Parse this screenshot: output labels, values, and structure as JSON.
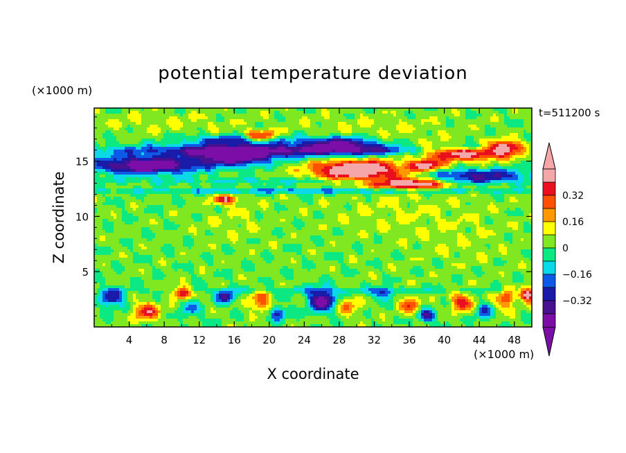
{
  "chart_data": {
    "type": "heatmap",
    "title": "potential temperature deviation",
    "time_label": "t=511200 s",
    "xlabel": "X coordinate",
    "ylabel": "Z coordinate",
    "x_unit": "(×1000 m)",
    "y_unit": "(×1000 m)",
    "xlim": [
      0,
      50
    ],
    "ylim": [
      0,
      19.8
    ],
    "x_ticks": [
      4,
      8,
      12,
      16,
      20,
      24,
      28,
      32,
      36,
      40,
      44,
      48
    ],
    "y_ticks": [
      5,
      10,
      15
    ],
    "grid": false,
    "colorbar": {
      "levels": [
        -0.48,
        -0.4,
        -0.32,
        -0.24,
        -0.16,
        -0.08,
        0,
        0.08,
        0.16,
        0.24,
        0.32,
        0.4,
        0.48
      ],
      "tick_values": [
        0.32,
        0.16,
        0,
        -0.16,
        -0.32
      ],
      "tick_labels": [
        "0.32",
        "0.16",
        "0",
        "−0.16",
        "−0.32"
      ],
      "colors": [
        "#7a0ea6",
        "#46108f",
        "#1a1aa8",
        "#0c5ae6",
        "#0bd9ea",
        "#0bea82",
        "#7fe820",
        "#ffff00",
        "#ff9800",
        "#ff5200",
        "#e8101e",
        "#f4a6a8"
      ],
      "under_color": "#7a0ea6",
      "over_color": "#f4a6a8"
    },
    "field": {
      "background_value": 0.02,
      "features": [
        {
          "x": 8,
          "z": 18.5,
          "sx": 9,
          "sz": 1.0,
          "v": 0.06
        },
        {
          "x": 32,
          "z": 18.0,
          "sx": 10,
          "sz": 1.2,
          "v": 0.06
        },
        {
          "x": 34,
          "z": 10.5,
          "sx": 8,
          "sz": 2.5,
          "v": 0.05
        },
        {
          "x": 16,
          "z": 9.5,
          "sx": 4,
          "sz": 2.0,
          "v": 0.05
        },
        {
          "x": 42,
          "z": 8.0,
          "sx": 6,
          "sz": 3.0,
          "v": 0.04
        },
        {
          "x": 25,
          "z": 16.0,
          "sx": 25,
          "sz": 0.45,
          "v": -0.24
        },
        {
          "x": 20,
          "z": 15.8,
          "sx": 18,
          "sz": 0.7,
          "v": -0.18
        },
        {
          "x": 6,
          "z": 14.6,
          "sx": 6,
          "sz": 0.75,
          "v": -0.55
        },
        {
          "x": 16,
          "z": 15.4,
          "sx": 4,
          "sz": 0.8,
          "v": -0.5
        },
        {
          "x": 28,
          "z": 16.6,
          "sx": 4,
          "sz": 0.6,
          "v": -0.42
        },
        {
          "x": 17,
          "z": 16.9,
          "sx": 6,
          "sz": 0.5,
          "v": -0.32
        },
        {
          "x": 43,
          "z": 16.3,
          "sx": 3,
          "sz": 0.4,
          "v": -0.28
        },
        {
          "x": 44,
          "z": 13.7,
          "sx": 6,
          "sz": 0.6,
          "v": -0.36
        },
        {
          "x": 25,
          "z": 12.3,
          "sx": 25,
          "sz": 0.25,
          "v": -0.2
        },
        {
          "x": 25,
          "z": 13.2,
          "sx": 25,
          "sz": 0.3,
          "v": -0.12
        },
        {
          "x": 30,
          "z": 14.2,
          "sx": 5,
          "sz": 0.9,
          "v": 0.6
        },
        {
          "x": 36,
          "z": 13.0,
          "sx": 4,
          "sz": 0.5,
          "v": 0.55
        },
        {
          "x": 42,
          "z": 15.8,
          "sx": 5,
          "sz": 0.7,
          "v": 0.6
        },
        {
          "x": 47,
          "z": 16.2,
          "sx": 2,
          "sz": 0.6,
          "v": 0.5
        },
        {
          "x": 19,
          "z": 17.2,
          "sx": 2,
          "sz": 0.5,
          "v": 0.45
        },
        {
          "x": 15,
          "z": 11.5,
          "sx": 1.5,
          "sz": 0.4,
          "v": 0.35
        },
        {
          "x": 38,
          "z": 14.6,
          "sx": 2,
          "sz": 0.5,
          "v": 0.4
        },
        {
          "x": 25,
          "z": 3.3,
          "sx": 25,
          "sz": 0.25,
          "v": -0.1
        },
        {
          "x": 2,
          "z": 2.6,
          "sx": 1.4,
          "sz": 0.8,
          "v": -0.35
        },
        {
          "x": 6,
          "z": 1.4,
          "sx": 1.5,
          "sz": 0.8,
          "v": 0.34
        },
        {
          "x": 10,
          "z": 3.1,
          "sx": 1.0,
          "sz": 0.5,
          "v": 0.48
        },
        {
          "x": 11,
          "z": 1.6,
          "sx": 1.0,
          "sz": 0.8,
          "v": -0.2
        },
        {
          "x": 15,
          "z": 2.7,
          "sx": 0.9,
          "sz": 0.6,
          "v": -0.4
        },
        {
          "x": 19,
          "z": 2.3,
          "sx": 1.2,
          "sz": 0.9,
          "v": 0.28
        },
        {
          "x": 21,
          "z": 1.2,
          "sx": 1.0,
          "sz": 0.6,
          "v": -0.3
        },
        {
          "x": 26,
          "z": 2.4,
          "sx": 1.5,
          "sz": 1.0,
          "v": -0.5
        },
        {
          "x": 29,
          "z": 1.8,
          "sx": 1.2,
          "sz": 0.8,
          "v": 0.22
        },
        {
          "x": 33,
          "z": 3.0,
          "sx": 1.2,
          "sz": 0.5,
          "v": -0.28
        },
        {
          "x": 36,
          "z": 2.0,
          "sx": 1.0,
          "sz": 0.8,
          "v": 0.3
        },
        {
          "x": 38,
          "z": 1.0,
          "sx": 1.0,
          "sz": 0.6,
          "v": -0.34
        },
        {
          "x": 42,
          "z": 2.2,
          "sx": 1.2,
          "sz": 0.8,
          "v": 0.36
        },
        {
          "x": 44.5,
          "z": 1.4,
          "sx": 1.0,
          "sz": 0.7,
          "v": -0.24
        },
        {
          "x": 47,
          "z": 2.5,
          "sx": 1.0,
          "sz": 0.9,
          "v": 0.3
        },
        {
          "x": 49.5,
          "z": 2.9,
          "sx": 0.8,
          "sz": 0.6,
          "v": 0.5
        }
      ]
    }
  }
}
